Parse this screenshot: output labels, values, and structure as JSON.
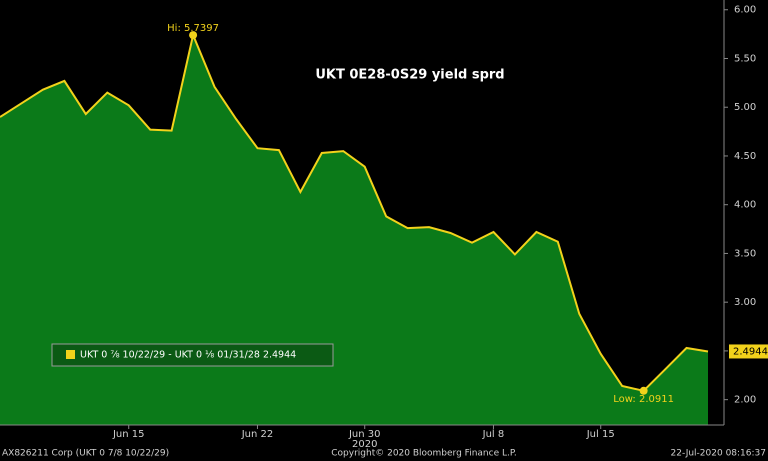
{
  "chart_data": {
    "type": "area",
    "title": "UKT 0E28-0S29 yield sprd",
    "categories": [
      null,
      null,
      null,
      null,
      null,
      null,
      "Jun 15",
      null,
      null,
      null,
      null,
      null,
      "Jun 22",
      null,
      null,
      null,
      null,
      "Jun 30",
      null,
      null,
      null,
      null,
      null,
      "Jul 8",
      null,
      null,
      null,
      null,
      "Jul 15",
      null,
      null,
      null,
      null,
      null
    ],
    "x_sublabel": "2020",
    "series": [
      {
        "name": "UKT 0 ⅞ 10/22/29 - UKT 0 ⅛ 01/31/28 2.4944",
        "color": "#f2d21b",
        "fill_color": "#0b7a19",
        "values": [
          4.9,
          5.04,
          5.18,
          5.27,
          4.93,
          5.15,
          5.02,
          4.77,
          4.76,
          5.7397,
          5.21,
          4.88,
          4.58,
          4.56,
          4.13,
          4.53,
          4.55,
          4.39,
          3.88,
          3.76,
          3.77,
          3.71,
          3.61,
          3.72,
          3.49,
          3.72,
          3.62,
          2.88,
          2.47,
          2.14,
          2.0911,
          2.31,
          2.53,
          2.4944
        ]
      }
    ],
    "hi_label": "Hi: 5.7397",
    "low_label": "Low: 2.0911",
    "last_value_label": "2.4944",
    "ylim": [
      1.74,
      6.1
    ],
    "yticks": [
      {
        "value": 2,
        "label": "2.00"
      },
      {
        "value": 2.5,
        "label": "2.50"
      },
      {
        "value": 3,
        "label": "3.00"
      },
      {
        "value": 3.5,
        "label": "3.50"
      },
      {
        "value": 4,
        "label": "4.00"
      },
      {
        "value": 4.5,
        "label": "4.50"
      },
      {
        "value": 5,
        "label": "5.00"
      },
      {
        "value": 5.5,
        "label": "5.50"
      },
      {
        "value": 6,
        "label": "6.00"
      }
    ],
    "grid": false,
    "footer": {
      "left": "AX826211 Corp (UKT 0 7/8 10/22/29)",
      "center": "Copyright© 2020 Bloomberg Finance L.P.",
      "right": "22-Jul-2020 08:16:37"
    }
  }
}
